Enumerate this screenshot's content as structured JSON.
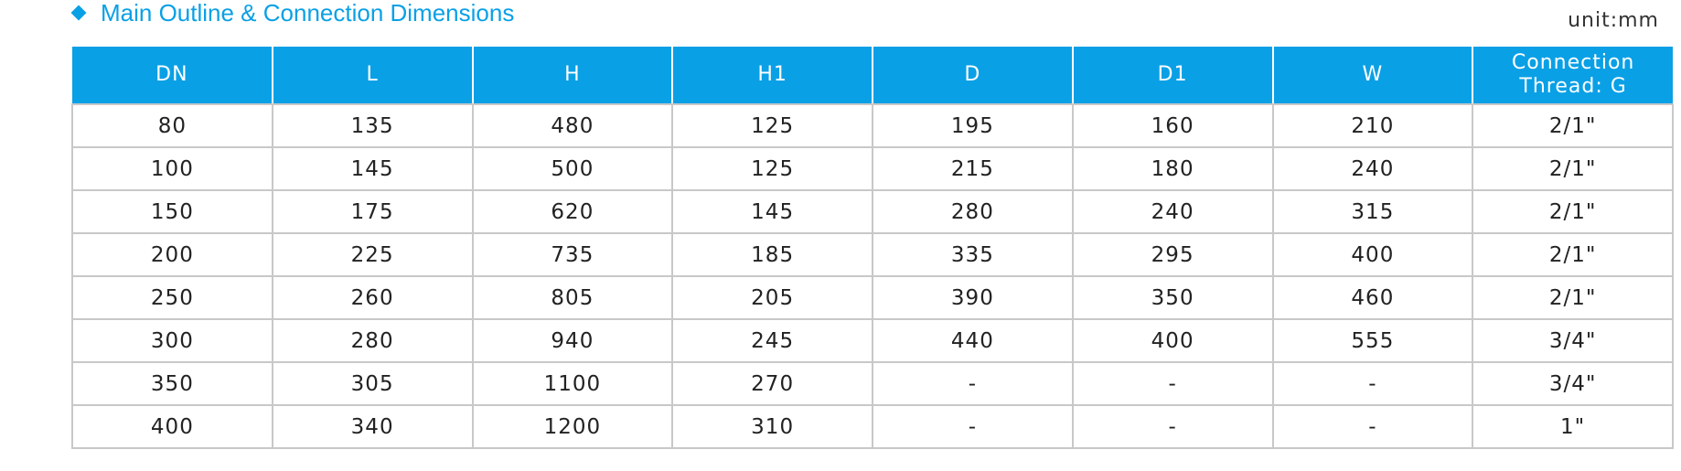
{
  "header": {
    "title": "Main Outline & Connection Dimensions",
    "unit": "unit:mm"
  },
  "table": {
    "columns": [
      "DN",
      "L",
      "H",
      "H1",
      "D",
      "D1",
      "W",
      "Connection Thread: G"
    ],
    "rows": [
      [
        "80",
        "135",
        "480",
        "125",
        "195",
        "160",
        "210",
        "2/1\""
      ],
      [
        "100",
        "145",
        "500",
        "125",
        "215",
        "180",
        "240",
        "2/1\""
      ],
      [
        "150",
        "175",
        "620",
        "145",
        "280",
        "240",
        "315",
        "2/1\""
      ],
      [
        "200",
        "225",
        "735",
        "185",
        "335",
        "295",
        "400",
        "2/1\""
      ],
      [
        "250",
        "260",
        "805",
        "205",
        "390",
        "350",
        "460",
        "2/1\""
      ],
      [
        "300",
        "280",
        "940",
        "245",
        "440",
        "400",
        "555",
        "3/4\""
      ],
      [
        "350",
        "305",
        "1100",
        "270",
        "-",
        "-",
        "-",
        "3/4\""
      ],
      [
        "400",
        "340",
        "1200",
        "310",
        "-",
        "-",
        "-",
        "1\""
      ]
    ]
  }
}
